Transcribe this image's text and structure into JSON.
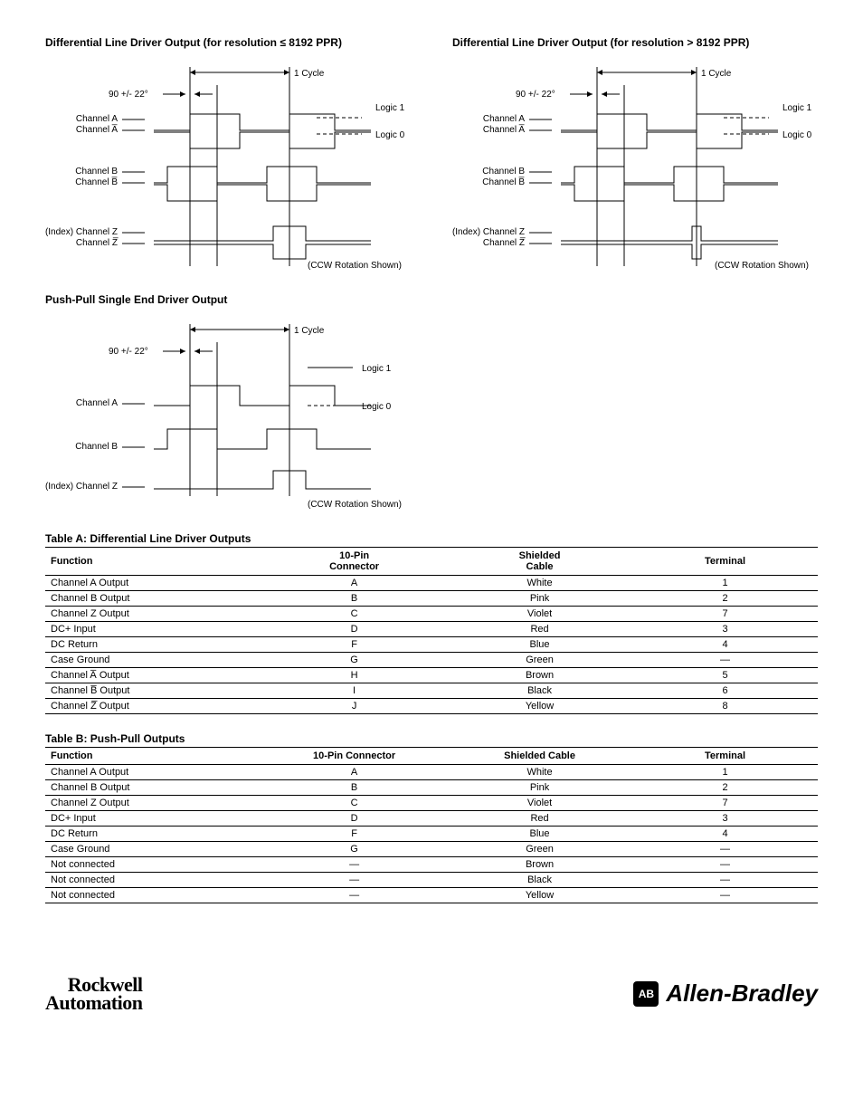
{
  "diagrams": {
    "d1": {
      "title": "Differential Line Driver Output (for resolution ≤ 8192 PPR)",
      "cycle": "1 Cycle",
      "phase": "90 +/- 22°",
      "chA": "Channel A",
      "chAn": "Channel A̅",
      "chB": "Channel B",
      "chBn": "Channel B̅",
      "chZ": "(Index) Channel Z",
      "chZn": "Channel Z̅",
      "logic1": "Logic 1",
      "logic0": "Logic 0",
      "ccw": "(CCW Rotation Shown)"
    },
    "d2": {
      "title": "Differential Line Driver Output (for resolution > 8192 PPR)",
      "cycle": "1 Cycle",
      "phase": "90 +/- 22°",
      "chA": "Channel A",
      "chAn": "Channel A̅",
      "chB": "Channel B",
      "chBn": "Channel B̅",
      "chZ": "(Index) Channel Z",
      "chZn": "Channel Z̅",
      "logic1": "Logic 1",
      "logic0": "Logic 0",
      "ccw": "(CCW Rotation Shown)"
    },
    "d3": {
      "title": "Push-Pull Single End Driver Output",
      "cycle": "1 Cycle",
      "phase": "90 +/- 22°",
      "chA": "Channel A",
      "chB": "Channel B",
      "chZ": "(Index) Channel Z",
      "logic1": "Logic 1",
      "logic0": "Logic 0",
      "ccw": "(CCW Rotation Shown)"
    }
  },
  "tableA": {
    "title": "Table A: Differential Line Driver Outputs",
    "headers": {
      "h1": "Function",
      "h2": "10-Pin\nConnector",
      "h3": "Shielded\nCable",
      "h4": "Terminal"
    },
    "rows": [
      {
        "f": "Channel A Output",
        "c": "A",
        "s": "White",
        "t": "1"
      },
      {
        "f": "Channel B Output",
        "c": "B",
        "s": "Pink",
        "t": "2"
      },
      {
        "f": "Channel Z Output",
        "c": "C",
        "s": "Violet",
        "t": "7"
      },
      {
        "f": "DC+ Input",
        "c": "D",
        "s": "Red",
        "t": "3"
      },
      {
        "f": "DC Return",
        "c": "F",
        "s": "Blue",
        "t": "4"
      },
      {
        "f": "Case Ground",
        "c": "G",
        "s": "Green",
        "t": "—"
      },
      {
        "f": "Channel A̅ Output",
        "c": "H",
        "s": "Brown",
        "t": "5"
      },
      {
        "f": "Channel B̅ Output",
        "c": "I",
        "s": "Black",
        "t": "6"
      },
      {
        "f": "Channel Z̅ Output",
        "c": "J",
        "s": "Yellow",
        "t": "8"
      }
    ]
  },
  "tableB": {
    "title": "Table B: Push-Pull Outputs",
    "headers": {
      "h1": "Function",
      "h2": "10-Pin Connector",
      "h3": "Shielded Cable",
      "h4": "Terminal"
    },
    "rows": [
      {
        "f": "Channel A Output",
        "c": "A",
        "s": "White",
        "t": "1"
      },
      {
        "f": "Channel B Output",
        "c": "B",
        "s": "Pink",
        "t": "2"
      },
      {
        "f": "Channel Z Output",
        "c": "C",
        "s": "Violet",
        "t": "7"
      },
      {
        "f": "DC+ Input",
        "c": "D",
        "s": "Red",
        "t": "3"
      },
      {
        "f": "DC Return",
        "c": "F",
        "s": "Blue",
        "t": "4"
      },
      {
        "f": "Case Ground",
        "c": "G",
        "s": "Green",
        "t": "—"
      },
      {
        "f": "Not connected",
        "c": "—",
        "s": "Brown",
        "t": "—"
      },
      {
        "f": "Not connected",
        "c": "—",
        "s": "Black",
        "t": "—"
      },
      {
        "f": "Not connected",
        "c": "—",
        "s": "Yellow",
        "t": "—"
      }
    ]
  },
  "footer": {
    "rockwell1": "Rockwell",
    "rockwell2": "Automation",
    "ab_badge": "AB",
    "ab_text": "Allen-Bradley"
  },
  "colors": {
    "stroke": "#000000",
    "bg": "#ffffff"
  }
}
